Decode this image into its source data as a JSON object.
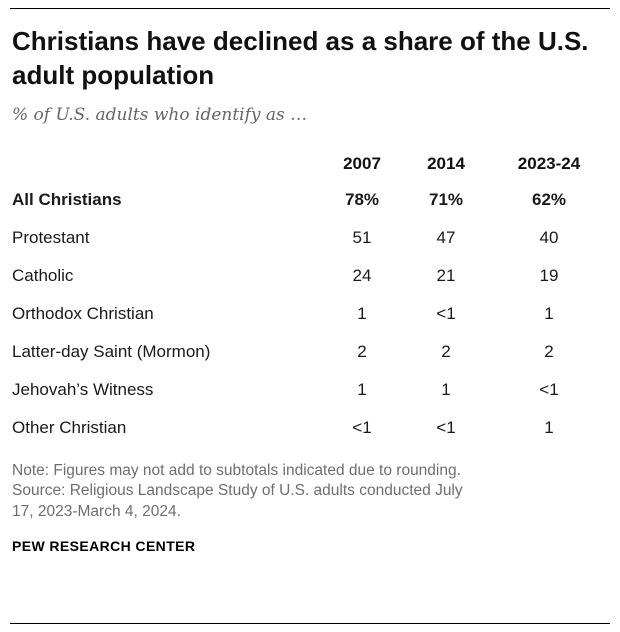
{
  "header": {
    "title": "Christians have declined as a share of the U.S. adult population",
    "subtitle": "% of U.S. adults who identify as …"
  },
  "table": {
    "columns": [
      "2007",
      "2014",
      "2023-24"
    ],
    "rows": [
      {
        "label": "All Christians",
        "values": [
          "78%",
          "71%",
          "62%"
        ]
      },
      {
        "label": "Protestant",
        "values": [
          "51",
          "47",
          "40"
        ]
      },
      {
        "label": "Catholic",
        "values": [
          "24",
          "21",
          "19"
        ]
      },
      {
        "label": "Orthodox Christian",
        "values": [
          "1",
          "<1",
          "1"
        ]
      },
      {
        "label": "Latter-day Saint (Mormon)",
        "values": [
          "2",
          "2",
          "2"
        ]
      },
      {
        "label": "Jehovah’s Witness",
        "values": [
          "1",
          "1",
          "<1"
        ]
      },
      {
        "label": "Other Christian",
        "values": [
          "<1",
          "<1",
          "1"
        ]
      }
    ]
  },
  "footer": {
    "note_lines": [
      "Note: Figures may not add to subtotals indicated due to rounding.",
      "Source: Religious Landscape Study of U.S. adults conducted July",
      "17, 2023-March 4, 2024."
    ],
    "brand": "PEW RESEARCH CENTER"
  },
  "colors": {
    "title": "#111111",
    "subtitle": "#666666",
    "note": "#6e6e6e",
    "rule": "#000000"
  },
  "chart_data": {
    "type": "table",
    "title": "Christians have declined as a share of the U.S. adult population",
    "subtitle": "% of U.S. adults who identify as …",
    "categories": [
      "2007",
      "2014",
      "2023-24"
    ],
    "series": [
      {
        "name": "All Christians",
        "values": [
          "78%",
          "71%",
          "62%"
        ]
      },
      {
        "name": "Protestant",
        "values": [
          51,
          47,
          40
        ]
      },
      {
        "name": "Catholic",
        "values": [
          24,
          21,
          19
        ]
      },
      {
        "name": "Orthodox Christian",
        "values": [
          1,
          "<1",
          1
        ]
      },
      {
        "name": "Latter-day Saint (Mormon)",
        "values": [
          2,
          2,
          2
        ]
      },
      {
        "name": "Jehovah’s Witness",
        "values": [
          1,
          1,
          "<1"
        ]
      },
      {
        "name": "Other Christian",
        "values": [
          "<1",
          "<1",
          1
        ]
      }
    ],
    "note": "Note: Figures may not add to subtotals indicated due to rounding. Source: Religious Landscape Study of U.S. adults conducted July 17, 2023-March 4, 2024.",
    "source_brand": "PEW RESEARCH CENTER"
  }
}
